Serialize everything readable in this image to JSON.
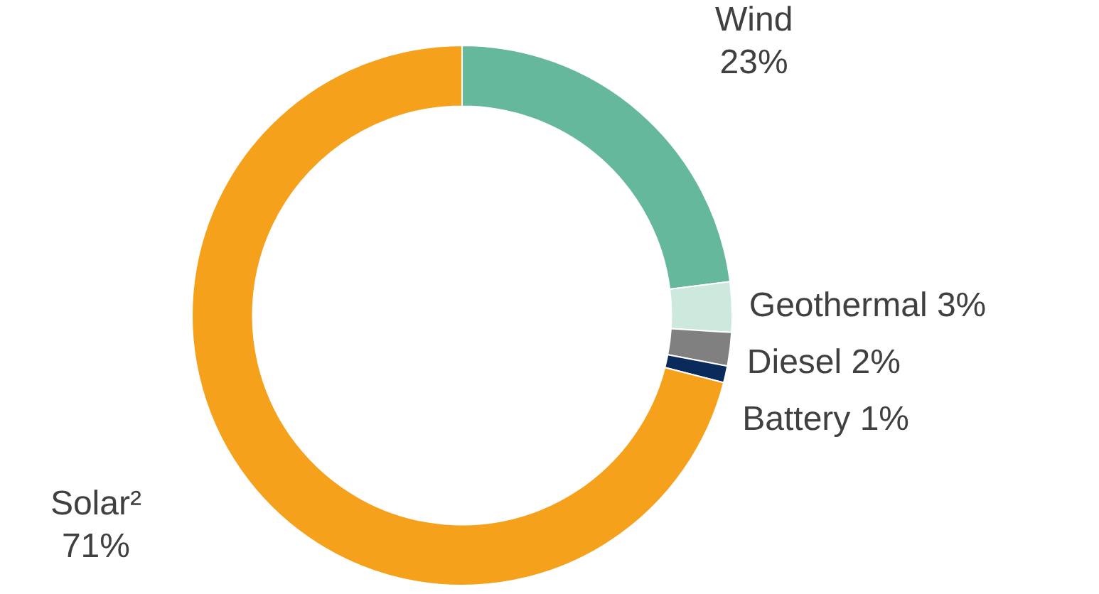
{
  "chart_data": {
    "type": "donut",
    "categories": [
      "Wind",
      "Geothermal",
      "Diesel",
      "Battery",
      "Solar²"
    ],
    "values": [
      23,
      3,
      2,
      1,
      71
    ],
    "colors": [
      "#66b89c",
      "#cde8dd",
      "#808080",
      "#0b2a5c",
      "#f5a11c"
    ],
    "value_labels": [
      "23%",
      "3%",
      "2%",
      "1%",
      "71%"
    ]
  }
}
